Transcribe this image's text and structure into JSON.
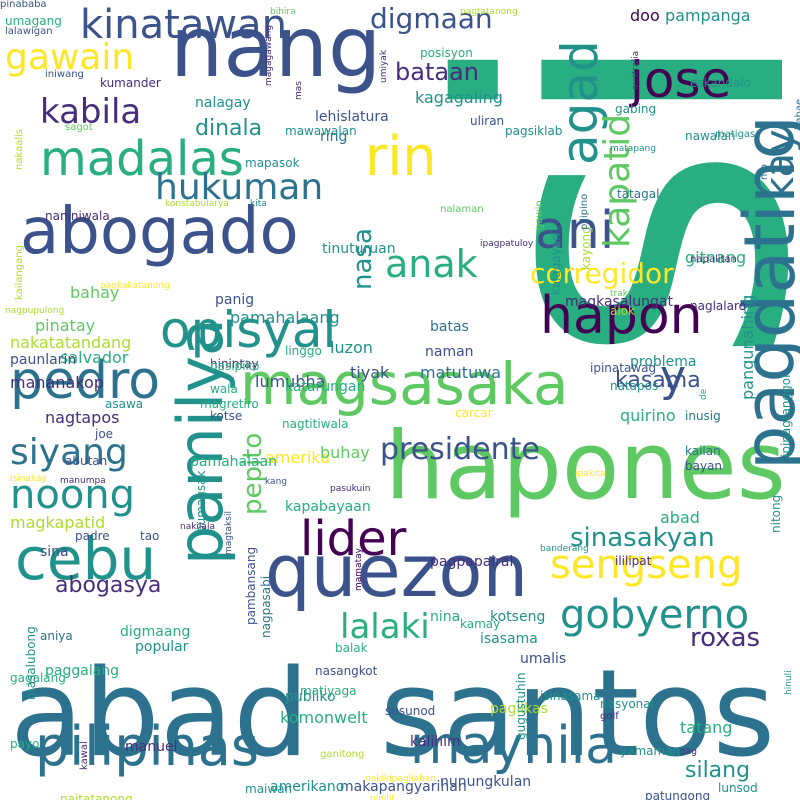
{
  "palette": {
    "purple": "#440154",
    "indigo": "#472d7b",
    "blue": "#3b528b",
    "slate": "#2c728e",
    "teal": "#21918c",
    "green": "#28ae80",
    "lime": "#5ec962",
    "yellowgreen": "#addc30",
    "yellow": "#fde725"
  },
  "words": [
    {
      "text": "si"
    },
    {
      "text": "abad"
    },
    {
      "text": "santos"
    },
    {
      "text": "hapones"
    },
    {
      "text": "nang"
    },
    {
      "text": "pagdating"
    },
    {
      "text": "quezon"
    },
    {
      "text": "magsasaka"
    },
    {
      "text": "abogado"
    },
    {
      "text": "pamilya"
    },
    {
      "text": "agad"
    },
    {
      "text": "pilipinas"
    },
    {
      "text": "maynila"
    },
    {
      "text": "cebu"
    },
    {
      "text": "opisyal"
    },
    {
      "text": "pedro"
    },
    {
      "text": "madalas"
    },
    {
      "text": "hapon"
    },
    {
      "text": "jose"
    },
    {
      "text": "rin"
    },
    {
      "text": "ani"
    },
    {
      "text": "kinatawan"
    },
    {
      "text": "kapatid"
    },
    {
      "text": "lider"
    },
    {
      "text": "kay"
    },
    {
      "text": "y"
    },
    {
      "text": "sengseng"
    },
    {
      "text": "gobyerno"
    },
    {
      "text": "hukuman"
    },
    {
      "text": "lalaki"
    },
    {
      "text": "noong"
    },
    {
      "text": "siyang"
    },
    {
      "text": "anak"
    },
    {
      "text": "kabila"
    },
    {
      "text": "presidente"
    },
    {
      "text": "gawain"
    },
    {
      "text": "digmaan"
    },
    {
      "text": "sinasakyan"
    },
    {
      "text": "corregidor"
    },
    {
      "text": "pepito"
    },
    {
      "text": "nasa"
    },
    {
      "text": "bataan"
    },
    {
      "text": "dinala"
    },
    {
      "text": "roxas"
    },
    {
      "text": "kasama"
    },
    {
      "text": "abogasya"
    },
    {
      "text": "silang"
    },
    {
      "text": "pangunahing"
    },
    {
      "text": "tiyak"
    },
    {
      "text": "matutuwa"
    },
    {
      "text": "pamahalaang"
    },
    {
      "text": "pinatay"
    },
    {
      "text": "pampanga"
    },
    {
      "text": "nagtapos"
    },
    {
      "text": "amerika"
    },
    {
      "text": "buhay"
    },
    {
      "text": "komonwelt"
    },
    {
      "text": "tatang"
    },
    {
      "text": "quirino"
    },
    {
      "text": "bahay"
    },
    {
      "text": "kagagaling"
    },
    {
      "text": "lumubha"
    },
    {
      "text": "luzon"
    },
    {
      "text": "salvador"
    },
    {
      "text": "manuel"
    },
    {
      "text": "nakatatandang"
    },
    {
      "text": "gitnang"
    },
    {
      "text": "abad"
    },
    {
      "text": "nalagay"
    },
    {
      "text": "doo"
    },
    {
      "text": "mananakop"
    },
    {
      "text": "magkapatid"
    },
    {
      "text": "popular"
    },
    {
      "text": "lehislatura"
    },
    {
      "text": "problema"
    },
    {
      "text": "pagpapairal"
    },
    {
      "text": "magkasalungat"
    },
    {
      "text": "katarungan"
    },
    {
      "text": "pamahalaan"
    },
    {
      "text": "kapabayaan"
    },
    {
      "text": "sina"
    },
    {
      "text": "kalihim"
    },
    {
      "text": "publiko"
    },
    {
      "text": "umalis"
    },
    {
      "text": "batas"
    },
    {
      "text": "naman"
    },
    {
      "text": "digmaang"
    },
    {
      "text": "paglikas"
    },
    {
      "text": "nunungkulan"
    },
    {
      "text": "makapangyarihan"
    },
    {
      "text": "amerikano"
    },
    {
      "text": "isasama"
    },
    {
      "text": "nina"
    },
    {
      "text": "kotseng"
    },
    {
      "text": "paggalang"
    },
    {
      "text": "panig"
    },
    {
      "text": "tinuturuan"
    },
    {
      "text": "hinintay"
    },
    {
      "text": "paunlarin"
    },
    {
      "text": "kumander"
    },
    {
      "text": "ring"
    },
    {
      "text": "naniniwala"
    },
    {
      "text": "mapasok"
    },
    {
      "text": "posisyon"
    },
    {
      "text": "uliran"
    },
    {
      "text": "mawawalan"
    },
    {
      "text": "pagsiklab"
    },
    {
      "text": "nawalan"
    },
    {
      "text": "eskandalo"
    },
    {
      "text": "tatagal"
    },
    {
      "text": "gabing"
    },
    {
      "text": "inusig"
    },
    {
      "text": "kailan"
    },
    {
      "text": "bayan"
    },
    {
      "text": "nitong"
    },
    {
      "text": "patungong"
    },
    {
      "text": "tumanggi"
    },
    {
      "text": "yamaman"
    },
    {
      "text": "pasipiko"
    },
    {
      "text": "magretiro"
    },
    {
      "text": "linggo"
    },
    {
      "text": "alok"
    },
    {
      "text": "naglalaro"
    },
    {
      "text": "kalagayan"
    },
    {
      "text": "kayong"
    },
    {
      "text": "natapos"
    },
    {
      "text": "ipinatawag"
    },
    {
      "text": "ipinagtanggol"
    },
    {
      "text": "nasyonal"
    },
    {
      "text": "ililipat"
    },
    {
      "text": "isinasama"
    },
    {
      "text": "gugustuhin"
    },
    {
      "text": "kamay"
    },
    {
      "text": "nasangkot"
    },
    {
      "text": "matiyaga"
    },
    {
      "text": "susunod"
    },
    {
      "text": "balak"
    },
    {
      "text": "pambansang"
    },
    {
      "text": "nagpasabi"
    },
    {
      "text": "aniya"
    },
    {
      "text": "gagalang"
    },
    {
      "text": "masalubong"
    },
    {
      "text": "payo"
    },
    {
      "text": "maiwan"
    },
    {
      "text": "naitatanong"
    },
    {
      "text": "lunsod"
    },
    {
      "text": "padre"
    },
    {
      "text": "tao"
    },
    {
      "text": "bumagsak"
    },
    {
      "text": "abutan"
    },
    {
      "text": "asawa"
    },
    {
      "text": "joe"
    },
    {
      "text": "wala"
    },
    {
      "text": "kotse"
    },
    {
      "text": "nagtitiwala"
    },
    {
      "text": "carcar"
    },
    {
      "text": "umagang"
    },
    {
      "text": "lalawigan"
    },
    {
      "text": "iniwang"
    },
    {
      "text": "sagot"
    },
    {
      "text": "nakaalis"
    },
    {
      "text": "kailangang"
    },
    {
      "text": "nagpupulong"
    },
    {
      "text": "pagkakatanong"
    },
    {
      "text": "bihira"
    },
    {
      "text": "pagtatanong"
    },
    {
      "text": "magagawang"
    },
    {
      "text": "mas"
    },
    {
      "text": "umiyak"
    },
    {
      "text": "kita"
    },
    {
      "text": "konstabularya"
    },
    {
      "text": "nalaman"
    },
    {
      "text": "gawin"
    },
    {
      "text": "pilipino"
    },
    {
      "text": "ipagpatuloy"
    },
    {
      "text": "trak"
    },
    {
      "text": "matapang"
    },
    {
      "text": "matigas"
    },
    {
      "text": "mo"
    },
    {
      "text": "babae"
    },
    {
      "text": "australia"
    },
    {
      "text": "napalitan"
    },
    {
      "text": "de"
    },
    {
      "text": "ipakita"
    },
    {
      "text": "banderang"
    },
    {
      "text": "ganitong"
    },
    {
      "text": "golf"
    },
    {
      "text": "pag"
    },
    {
      "text": "hinuli"
    },
    {
      "text": "kawal"
    },
    {
      "text": "nakikipagliaban"
    },
    {
      "text": "pinilit"
    },
    {
      "text": "kang"
    },
    {
      "text": "pasukuin"
    },
    {
      "text": "nakilala"
    },
    {
      "text": "magtaksil"
    },
    {
      "text": "mamatay"
    },
    {
      "text": "manumpa"
    },
    {
      "text": "isinakay"
    },
    {
      "text": "pinababa"
    }
  ]
}
